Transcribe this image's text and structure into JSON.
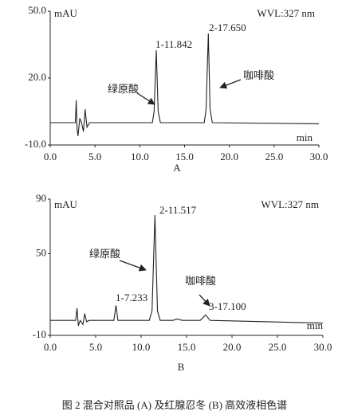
{
  "caption": "图 2  混合对照品 (A) 及红腺忍冬 (B) 高效液相色谱",
  "chart_data": [
    {
      "type": "line",
      "panel_label": "A",
      "y_unit": "mAU",
      "wavelength": "WVL:327 nm",
      "x_unit": "min",
      "annotations": [
        "1-11.842",
        "2-17.650",
        "绿原酸",
        "咖啡酸"
      ],
      "xlim": [
        0,
        30
      ],
      "ylim": [
        -10,
        50
      ],
      "xticks": [
        {
          "value": 0,
          "label": "0.0"
        },
        {
          "value": 5,
          "label": "5.0"
        },
        {
          "value": 10,
          "label": "10.0"
        },
        {
          "value": 15,
          "label": "15.0"
        },
        {
          "value": 20,
          "label": "20.0"
        },
        {
          "value": 25,
          "label": "25.0"
        },
        {
          "value": 30,
          "label": "30.0"
        }
      ],
      "yticks": [
        {
          "value": -10,
          "label": "-10.0"
        },
        {
          "value": 20,
          "label": "20.0"
        },
        {
          "value": 50,
          "label": "50.0"
        }
      ],
      "color": "#222222",
      "x": [
        0,
        2.8,
        2.9,
        3.0,
        3.1,
        3.3,
        3.5,
        3.7,
        3.9,
        4.1,
        4.4,
        6,
        11.4,
        11.6,
        11.842,
        12.05,
        12.3,
        17.2,
        17.4,
        17.65,
        17.85,
        18.1,
        30
      ],
      "values": [
        0,
        0,
        10,
        -3,
        -6,
        2,
        0,
        -4,
        6,
        -2,
        0,
        0,
        0,
        5,
        32.5,
        5,
        0,
        0,
        6,
        40,
        6,
        0,
        -0.5
      ]
    },
    {
      "type": "line",
      "panel_label": "B",
      "y_unit": "mAU",
      "wavelength": "WVL:327 nm",
      "x_unit": "min",
      "annotations": [
        "2-11.517",
        "1-7.233",
        "3-17.100",
        "绿原酸",
        "咖啡酸"
      ],
      "xlim": [
        0,
        30
      ],
      "ylim": [
        -10,
        90
      ],
      "xticks": [
        {
          "value": 0,
          "label": "0.0"
        },
        {
          "value": 5,
          "label": "5.0"
        },
        {
          "value": 10,
          "label": "10.0"
        },
        {
          "value": 15,
          "label": "15.0"
        },
        {
          "value": 20,
          "label": "20.0"
        },
        {
          "value": 25,
          "label": "25.0"
        },
        {
          "value": 30,
          "label": "30.0"
        }
      ],
      "yticks": [
        -10,
        50,
        90
      ],
      "color": "#222222",
      "x": [
        0,
        2.8,
        2.95,
        3.1,
        3.3,
        3.6,
        3.8,
        4.0,
        4.3,
        7,
        7.233,
        7.45,
        10.9,
        11.2,
        11.517,
        11.8,
        12.1,
        13.5,
        14,
        14.5,
        16.5,
        17.1,
        17.6,
        30
      ],
      "values": [
        1,
        1,
        10,
        -3,
        1,
        -2,
        6,
        0,
        1,
        1,
        12,
        1,
        1,
        8,
        78.3,
        8,
        1,
        1,
        2,
        1,
        1,
        5,
        1,
        -1
      ]
    }
  ]
}
